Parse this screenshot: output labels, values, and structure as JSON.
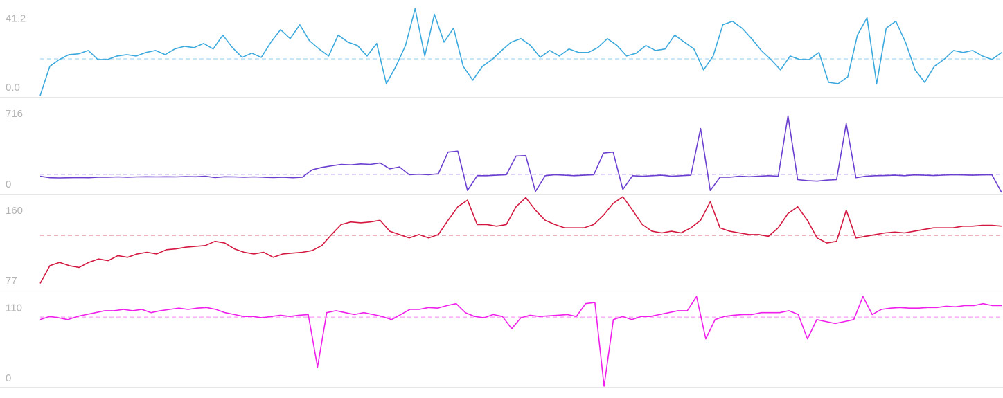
{
  "chart_data": [
    {
      "type": "line",
      "ylim": [
        0,
        56
      ],
      "yticks": [
        {
          "value": 41.2,
          "label": "41.2"
        },
        {
          "value": 0,
          "label": "0.0"
        }
      ],
      "average": 22,
      "series": [
        {
          "color": "#3ba9dd",
          "values": [
            0,
            17.5,
            21.6,
            24.5,
            25,
            27,
            21.6,
            21.6,
            23.7,
            24.5,
            23.7,
            25.8,
            27,
            24.5,
            27.9,
            29.5,
            28.7,
            31.2,
            27.9,
            36.2,
            28.7,
            22.9,
            25.4,
            22.9,
            32,
            39.5,
            34.1,
            42.4,
            32.9,
            27.9,
            23.7,
            36.2,
            32,
            30,
            23.7,
            31.2,
            7.1,
            17.5,
            30,
            52,
            23.7,
            48.7,
            32,
            40.4,
            17.5,
            9.2,
            17.5,
            21.6,
            27,
            32,
            34.1,
            30,
            22.9,
            27,
            23.7,
            27.9,
            25.8,
            25.8,
            28.7,
            34.1,
            30,
            23.7,
            25.4,
            30,
            27,
            27.9,
            36.2,
            32,
            27.9,
            15.4,
            23.7,
            42.4,
            44.5,
            40.4,
            34.1,
            27,
            21.6,
            15.4,
            23.7,
            21.6,
            21.6,
            25.8,
            7.9,
            7.1,
            11.2,
            36.2,
            46.6,
            7.1,
            40.4,
            44.5,
            32,
            15.4,
            7.9,
            17.5,
            21.6,
            27,
            25.8,
            27,
            23.7,
            21.6,
            25.8
          ]
        }
      ]
    },
    {
      "type": "line",
      "ylim": [
        0,
        950
      ],
      "yticks": [
        716,
        0
      ],
      "average": 184,
      "series": [
        {
          "color": "#6a3fd0",
          "values": [
            165,
            150,
            148,
            150,
            152,
            150,
            155,
            155,
            158,
            155,
            158,
            160,
            158,
            160,
            158,
            162,
            160,
            165,
            152,
            160,
            158,
            155,
            158,
            155,
            152,
            155,
            150,
            155,
            230,
            255,
            270,
            285,
            280,
            290,
            285,
            300,
            240,
            260,
            180,
            185,
            180,
            190,
            410,
            420,
            20,
            170,
            170,
            175,
            180,
            370,
            375,
            10,
            170,
            180,
            175,
            170,
            175,
            180,
            400,
            410,
            30,
            170,
            165,
            170,
            175,
            165,
            170,
            175,
            650,
            20,
            155,
            155,
            165,
            160,
            165,
            170,
            165,
            780,
            130,
            120,
            115,
            125,
            130,
            700,
            150,
            165,
            170,
            172,
            175,
            170,
            178,
            175,
            172,
            176,
            180,
            178,
            175,
            178,
            180,
            0
          ]
        }
      ]
    },
    {
      "type": "line",
      "ylim": [
        76,
        187
      ],
      "yticks": [
        160,
        77
      ],
      "average": 140,
      "series": [
        {
          "color": "#d3173f",
          "values": [
            83,
            104,
            108,
            104,
            102,
            108,
            112,
            110,
            116,
            114,
            118,
            120,
            118,
            123,
            124,
            126,
            127,
            128,
            133,
            131,
            124,
            120,
            118,
            120,
            114,
            118,
            119,
            120,
            122,
            128,
            141,
            153,
            156,
            155,
            156,
            158,
            145,
            141,
            137,
            141,
            137,
            141,
            158,
            174,
            182,
            153,
            153,
            151,
            153,
            174,
            185,
            170,
            158,
            153,
            149,
            149,
            149,
            153,
            164,
            178,
            186,
            170,
            153,
            145,
            143,
            145,
            143,
            149,
            158,
            180,
            149,
            145,
            143,
            141,
            141,
            139,
            149,
            166,
            174,
            158,
            137,
            131,
            133,
            170,
            137,
            139,
            141,
            143,
            144,
            143,
            145,
            147,
            149,
            149,
            149,
            151,
            151,
            152,
            152,
            151
          ]
        }
      ]
    },
    {
      "type": "line",
      "ylim": [
        0,
        146
      ],
      "yticks": [
        110,
        0
      ],
      "average": 108,
      "series": [
        {
          "color": "#ef1eeb",
          "values": [
            104,
            109,
            107,
            104,
            109,
            112,
            115,
            118,
            118,
            120,
            118,
            120,
            115,
            118,
            120,
            122,
            120,
            122,
            123,
            120,
            115,
            112,
            109,
            109,
            107,
            109,
            111,
            109,
            111,
            112,
            30,
            115,
            118,
            115,
            112,
            115,
            112,
            109,
            104,
            112,
            120,
            120,
            123,
            122,
            126,
            129,
            115,
            109,
            107,
            112,
            109,
            90,
            107,
            111,
            109,
            110,
            111,
            112,
            109,
            129,
            131,
            0,
            104,
            109,
            104,
            109,
            109,
            112,
            115,
            118,
            118,
            140,
            74,
            104,
            109,
            111,
            112,
            112,
            115,
            115,
            115,
            118,
            112,
            74,
            104,
            101,
            98,
            101,
            104,
            140,
            112,
            120,
            122,
            123,
            122,
            122,
            123,
            123,
            125,
            124,
            126,
            126,
            129,
            126,
            126
          ]
        }
      ]
    }
  ]
}
